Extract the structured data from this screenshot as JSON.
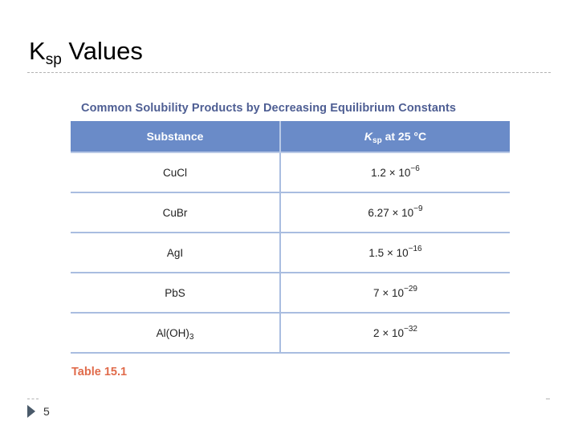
{
  "slide": {
    "title_main": "K",
    "title_sub": "sp",
    "title_rest": " Values",
    "page_number": "5"
  },
  "table": {
    "heading": "Common Solubility Products by Decreasing Equilibrium Constants",
    "columns": {
      "substance": "Substance",
      "ksp_k": "K",
      "ksp_sub": "sp",
      "ksp_rest": " at 25 °C"
    },
    "rows": [
      {
        "substance": "CuCl",
        "substance_sub": "",
        "coefficient": "1.2",
        "exponent": "−6"
      },
      {
        "substance": "CuBr",
        "substance_sub": "",
        "coefficient": "6.27",
        "exponent": "−9"
      },
      {
        "substance": "AgI",
        "substance_sub": "",
        "coefficient": "1.5",
        "exponent": "−16"
      },
      {
        "substance": "PbS",
        "substance_sub": "",
        "coefficient": "7",
        "exponent": "−29"
      },
      {
        "substance": "Al(OH)",
        "substance_sub": "3",
        "coefficient": "2",
        "exponent": "−32"
      }
    ],
    "times_symbol": "×",
    "base": "10",
    "caption": "Table 15.1"
  }
}
